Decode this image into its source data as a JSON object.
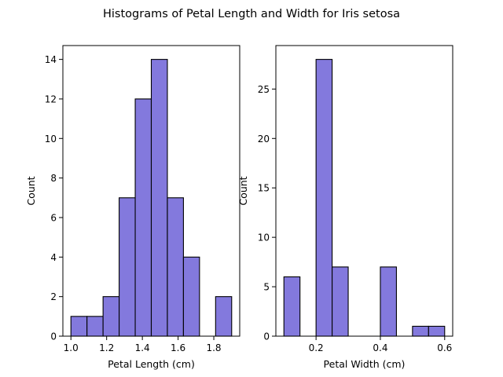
{
  "figure": {
    "title": "Histograms of Petal Length and Width for Iris setosa"
  },
  "colors": {
    "bar_fill": "#8379DD",
    "bar_edge": "#000000",
    "axes": "#000000",
    "background": "#FFFFFF"
  },
  "chart_data": [
    {
      "type": "bar",
      "subtype": "histogram",
      "xlabel": "Petal Length (cm)",
      "ylabel": "Count",
      "xlim": [
        0.955,
        1.945
      ],
      "ylim": [
        0,
        14.7
      ],
      "xticks": [
        1.0,
        1.2,
        1.4,
        1.6,
        1.8
      ],
      "xtick_labels": [
        "1.0",
        "1.2",
        "1.4",
        "1.6",
        "1.8"
      ],
      "yticks": [
        0,
        2,
        4,
        6,
        8,
        10,
        12,
        14
      ],
      "ytick_labels": [
        "0",
        "2",
        "4",
        "6",
        "8",
        "10",
        "12",
        "14"
      ],
      "bins": [
        {
          "x0": 1.0,
          "x1": 1.09,
          "value": 1
        },
        {
          "x0": 1.09,
          "x1": 1.18,
          "value": 1
        },
        {
          "x0": 1.18,
          "x1": 1.27,
          "value": 2
        },
        {
          "x0": 1.27,
          "x1": 1.36,
          "value": 7
        },
        {
          "x0": 1.36,
          "x1": 1.45,
          "value": 12
        },
        {
          "x0": 1.45,
          "x1": 1.54,
          "value": 14
        },
        {
          "x0": 1.54,
          "x1": 1.63,
          "value": 7
        },
        {
          "x0": 1.63,
          "x1": 1.72,
          "value": 4
        },
        {
          "x0": 1.72,
          "x1": 1.81,
          "value": 0
        },
        {
          "x0": 1.81,
          "x1": 1.9,
          "value": 2
        }
      ],
      "grid": false
    },
    {
      "type": "bar",
      "subtype": "histogram",
      "xlabel": "Petal Width (cm)",
      "ylabel": "Count",
      "xlim": [
        0.075,
        0.625
      ],
      "ylim": [
        0,
        29.4
      ],
      "xticks": [
        0.2,
        0.4,
        0.6
      ],
      "xtick_labels": [
        "0.2",
        "0.4",
        "0.6"
      ],
      "yticks": [
        0,
        5,
        10,
        15,
        20,
        25
      ],
      "ytick_labels": [
        "0",
        "5",
        "10",
        "15",
        "20",
        "25"
      ],
      "bins": [
        {
          "x0": 0.1,
          "x1": 0.15,
          "value": 6
        },
        {
          "x0": 0.15,
          "x1": 0.2,
          "value": 0
        },
        {
          "x0": 0.2,
          "x1": 0.25,
          "value": 28
        },
        {
          "x0": 0.25,
          "x1": 0.3,
          "value": 7
        },
        {
          "x0": 0.3,
          "x1": 0.35,
          "value": 0
        },
        {
          "x0": 0.35,
          "x1": 0.4,
          "value": 0
        },
        {
          "x0": 0.4,
          "x1": 0.45,
          "value": 7
        },
        {
          "x0": 0.45,
          "x1": 0.5,
          "value": 0
        },
        {
          "x0": 0.5,
          "x1": 0.55,
          "value": 1
        },
        {
          "x0": 0.55,
          "x1": 0.6,
          "value": 1
        }
      ],
      "grid": false
    }
  ]
}
